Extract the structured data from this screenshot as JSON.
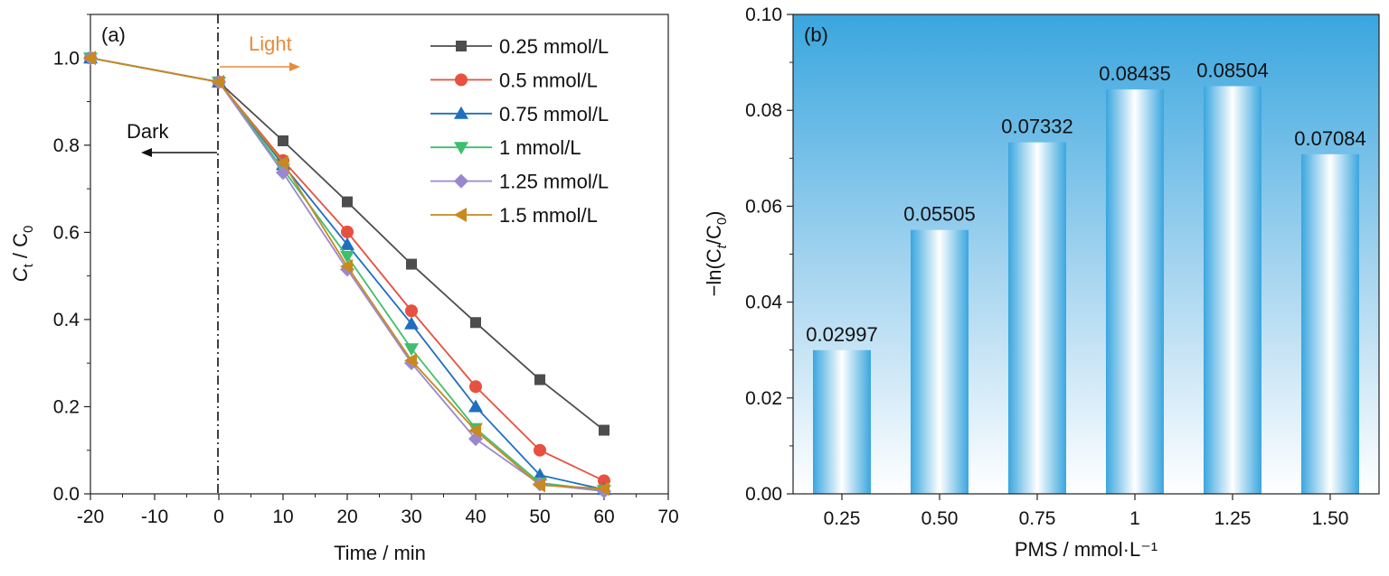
{
  "chart_data": [
    {
      "type": "line",
      "panel_label": "(a)",
      "xlabel": "Time / min",
      "ylabel_main": "C",
      "ylabel_sub1": "t",
      "ylabel_mid": " / C",
      "ylabel_sub2": "0",
      "xlim": [
        -20,
        70
      ],
      "ylim": [
        0.0,
        1.1
      ],
      "xticks": [
        "-20",
        "-10",
        "0",
        "10",
        "20",
        "30",
        "40",
        "50",
        "60",
        "70"
      ],
      "yticks": [
        "0.0",
        "0.2",
        "0.4",
        "0.6",
        "0.8",
        "1.0"
      ],
      "x": [
        -20,
        0,
        10,
        20,
        30,
        40,
        50,
        60
      ],
      "annotations": {
        "light": "Light",
        "dark": "Dark"
      },
      "legend_position": "top-right",
      "grid": false,
      "series": [
        {
          "name": "0.25 mmol/L",
          "color": "#4d4d4d",
          "marker": "square",
          "values": [
            1.0,
            0.945,
            0.81,
            0.67,
            0.527,
            0.393,
            0.262,
            0.146
          ]
        },
        {
          "name": "0.5 mmol/L",
          "color": "#e8503f",
          "marker": "circle",
          "values": [
            1.0,
            0.945,
            0.765,
            0.601,
            0.42,
            0.246,
            0.1,
            0.03
          ]
        },
        {
          "name": "0.75 mmol/L",
          "color": "#1f6fbf",
          "marker": "triangle-up",
          "values": [
            1.0,
            0.945,
            0.755,
            0.572,
            0.39,
            0.2,
            0.043,
            0.01
          ]
        },
        {
          "name": "1 mmol/L",
          "color": "#3dbf6e",
          "marker": "triangle-down",
          "values": [
            1.0,
            0.945,
            0.745,
            0.545,
            0.333,
            0.15,
            0.025,
            0.008
          ]
        },
        {
          "name": "1.25 mmol/L",
          "color": "#9a88cf",
          "marker": "diamond",
          "values": [
            1.0,
            0.945,
            0.737,
            0.515,
            0.3,
            0.126,
            0.022,
            0.006
          ]
        },
        {
          "name": "1.5 mmol/L",
          "color": "#c8891e",
          "marker": "triangle-left",
          "values": [
            1.0,
            0.945,
            0.76,
            0.522,
            0.306,
            0.145,
            0.02,
            0.012
          ]
        }
      ]
    },
    {
      "type": "bar",
      "panel_label": "(b)",
      "xlabel": "PMS / mmol·L⁻¹",
      "ylabel_pre": "−ln(C",
      "ylabel_sub1": "t",
      "ylabel_mid": "/C",
      "ylabel_sub2": "0",
      "ylabel_post": ")",
      "ylim": [
        0.0,
        0.1
      ],
      "yticks": [
        "0.00",
        "0.02",
        "0.04",
        "0.06",
        "0.08",
        "0.10"
      ],
      "categories": [
        "0.25",
        "0.50",
        "0.75",
        "1",
        "1.25",
        "1.50"
      ],
      "values": [
        0.02997,
        0.05505,
        0.07332,
        0.08435,
        0.08504,
        0.07084
      ],
      "value_labels": [
        "0.02997",
        "0.05505",
        "0.07332",
        "0.08435",
        "0.08504",
        "0.07084"
      ],
      "colors": {
        "bar": "#3aa6df",
        "background_top": "#3aa6df"
      },
      "grid": false
    }
  ]
}
